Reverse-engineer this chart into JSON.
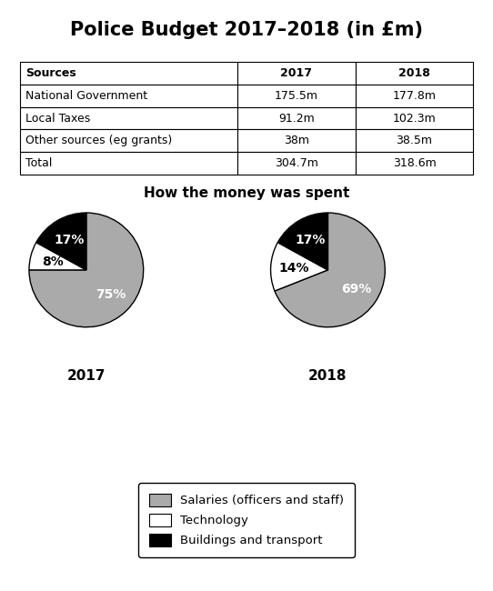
{
  "title": "Police Budget 2017–2018 (in £m)",
  "table": {
    "headers": [
      "Sources",
      "2017",
      "2018"
    ],
    "rows": [
      [
        "National Government",
        "175.5m",
        "177.8m"
      ],
      [
        "Local Taxes",
        "91.2m",
        "102.3m"
      ],
      [
        "Other sources (eg grants)",
        "38m",
        "38.5m"
      ],
      [
        "Total",
        "304.7m",
        "318.6m"
      ]
    ]
  },
  "pie_title": "How the money was spent",
  "pie_2017": {
    "label": "2017",
    "values": [
      75,
      8,
      17
    ],
    "labels": [
      "75%",
      "8%",
      "17%"
    ],
    "colors": [
      "#aaaaaa",
      "#ffffff",
      "#000000"
    ],
    "startangle": 90
  },
  "pie_2018": {
    "label": "2018",
    "values": [
      69,
      14,
      17
    ],
    "labels": [
      "69%",
      "14%",
      "17%"
    ],
    "colors": [
      "#aaaaaa",
      "#ffffff",
      "#000000"
    ],
    "startangle": 90
  },
  "legend_items": [
    {
      "label": "Salaries (officers and staff)",
      "color": "#aaaaaa"
    },
    {
      "label": "Technology",
      "color": "#ffffff"
    },
    {
      "label": "Buildings and transport",
      "color": "#000000"
    }
  ],
  "background_color": "#ffffff",
  "title_fontsize": 15,
  "pie_title_fontsize": 11,
  "table_fontsize": 9,
  "pie_label_fontsize": 10,
  "year_label_fontsize": 11
}
